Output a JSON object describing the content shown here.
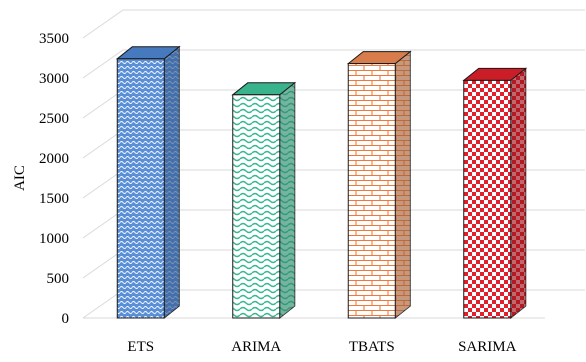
{
  "chart_data": {
    "type": "bar",
    "title": "",
    "xlabel": "",
    "ylabel": "AIC",
    "ylim": [
      0,
      3500
    ],
    "yticks": [
      0,
      500,
      1000,
      1500,
      2000,
      2500,
      3000,
      3500
    ],
    "grid": true,
    "legend": "none",
    "three_d": true,
    "categories": [
      "ETS",
      "ARIMA",
      "TBATS",
      "SARIMA"
    ],
    "values": [
      3240,
      2790,
      3180,
      2970
    ],
    "colors": [
      "#4f86d4",
      "#3fc79c",
      "#ef8a52",
      "#e0202c"
    ],
    "patterns": [
      "dotted-waves",
      "waves",
      "bricks",
      "checkerboard"
    ]
  }
}
